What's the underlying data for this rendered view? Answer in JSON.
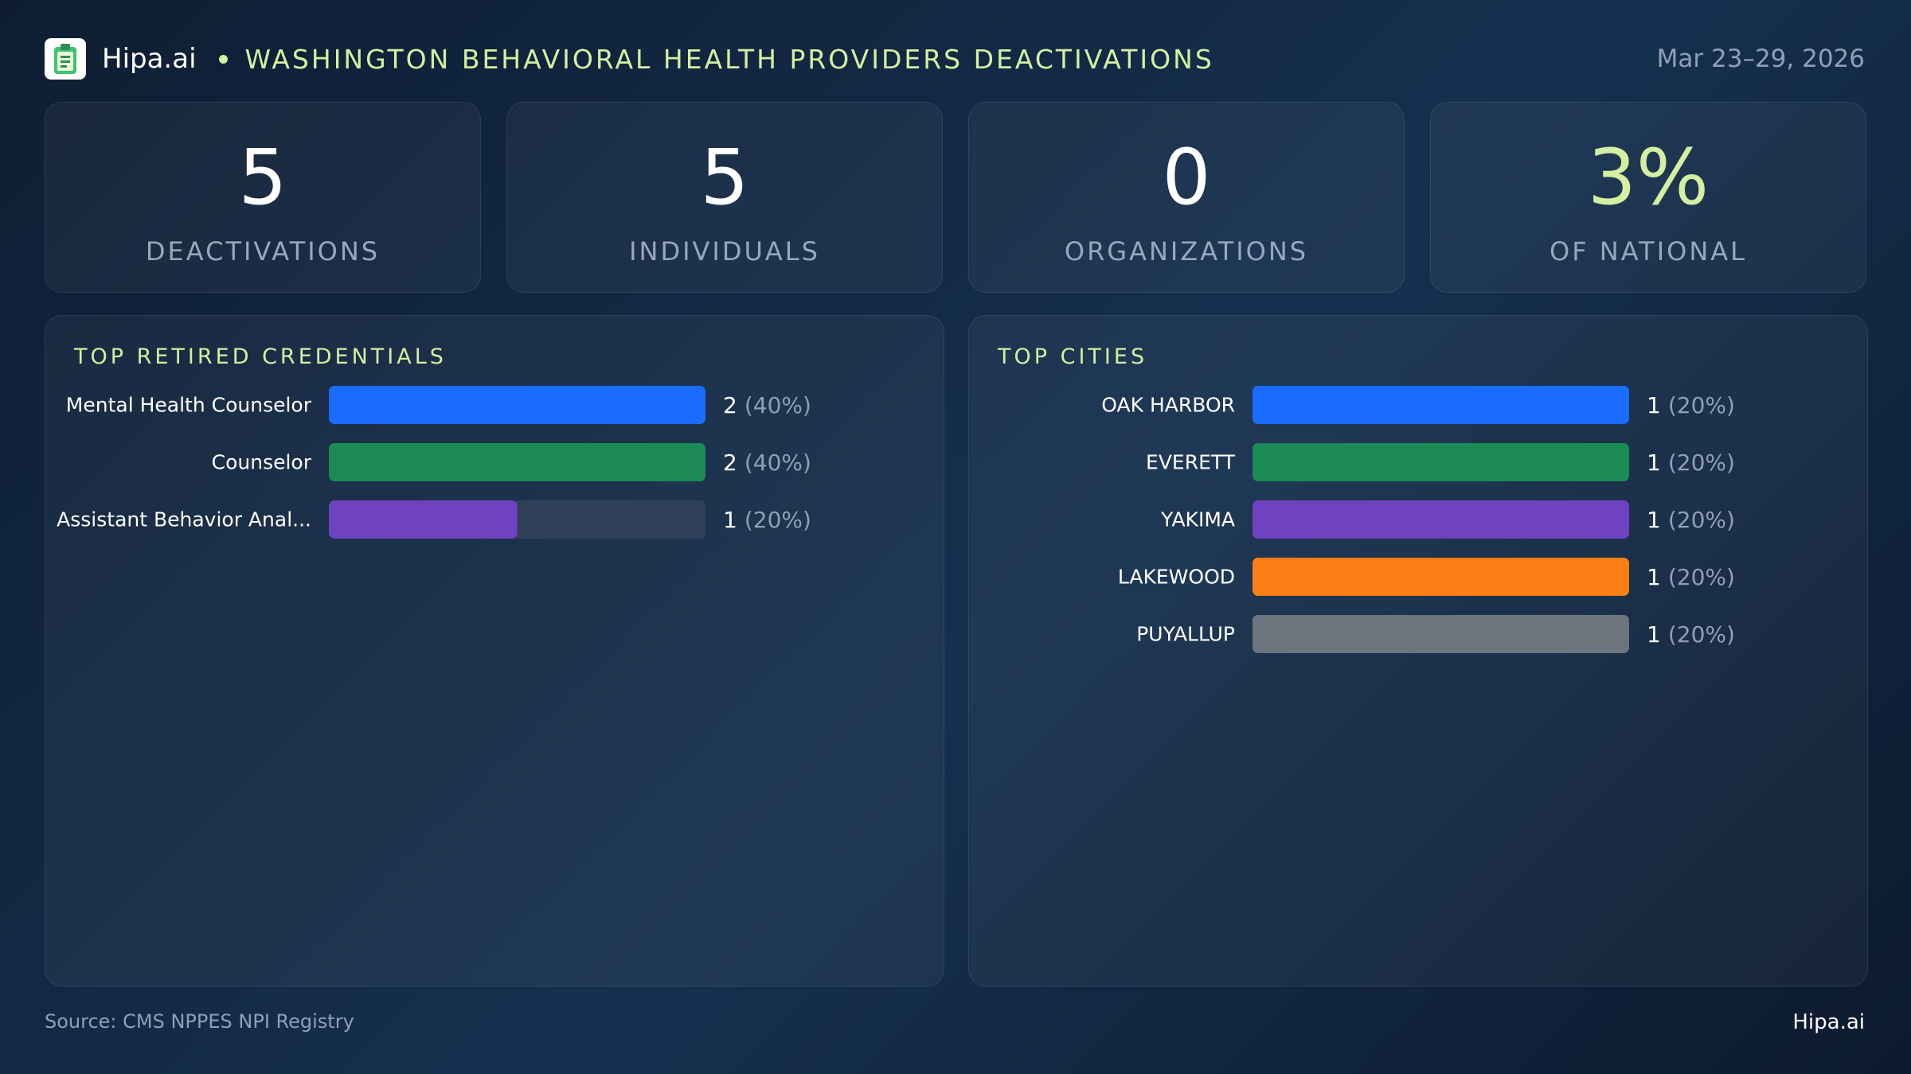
{
  "header": {
    "brand": "Hipa.ai",
    "title": "WASHINGTON BEHAVIORAL HEALTH PROVIDERS DEACTIVATIONS",
    "date": "Mar 23–29, 2026",
    "logo_icon": "clipboard-logo-icon"
  },
  "stats": [
    {
      "value": "5",
      "label": "DEACTIVATIONS"
    },
    {
      "value": "5",
      "label": "INDIVIDUALS"
    },
    {
      "value": "0",
      "label": "ORGANIZATIONS"
    },
    {
      "value": "3%",
      "label": "OF NATIONAL"
    }
  ],
  "colors": {
    "accent": "#d4f0a0",
    "track": "#2e4159",
    "blue": "#1a6cff",
    "green": "#1b8a53",
    "purple": "#6f42c1",
    "orange": "#fd7e14",
    "gray": "#6c757d"
  },
  "chart_data": [
    {
      "type": "bar",
      "orientation": "horizontal",
      "title": "TOP RETIRED CREDENTIALS",
      "categories": [
        "Mental Health Counselor",
        "Counselor",
        "Assistant Behavior Anal..."
      ],
      "values": [
        2,
        2,
        1
      ],
      "percents": [
        "(40%)",
        "(40%)",
        "(20%)"
      ],
      "colors": [
        "#1a6cff",
        "#1b8a53",
        "#6f42c1"
      ],
      "xlim": [
        0,
        2
      ]
    },
    {
      "type": "bar",
      "orientation": "horizontal",
      "title": "TOP CITIES",
      "categories": [
        "OAK HARBOR",
        "EVERETT",
        "YAKIMA",
        "LAKEWOOD",
        "PUYALLUP"
      ],
      "values": [
        1,
        1,
        1,
        1,
        1
      ],
      "percents": [
        "(20%)",
        "(20%)",
        "(20%)",
        "(20%)",
        "(20%)"
      ],
      "colors": [
        "#1a6cff",
        "#1b8a53",
        "#6f42c1",
        "#fd7e14",
        "#6c757d"
      ],
      "xlim": [
        0,
        1
      ]
    }
  ],
  "footer": {
    "source": "Source: CMS NPPES NPI Registry",
    "brand": "Hipa.ai"
  }
}
